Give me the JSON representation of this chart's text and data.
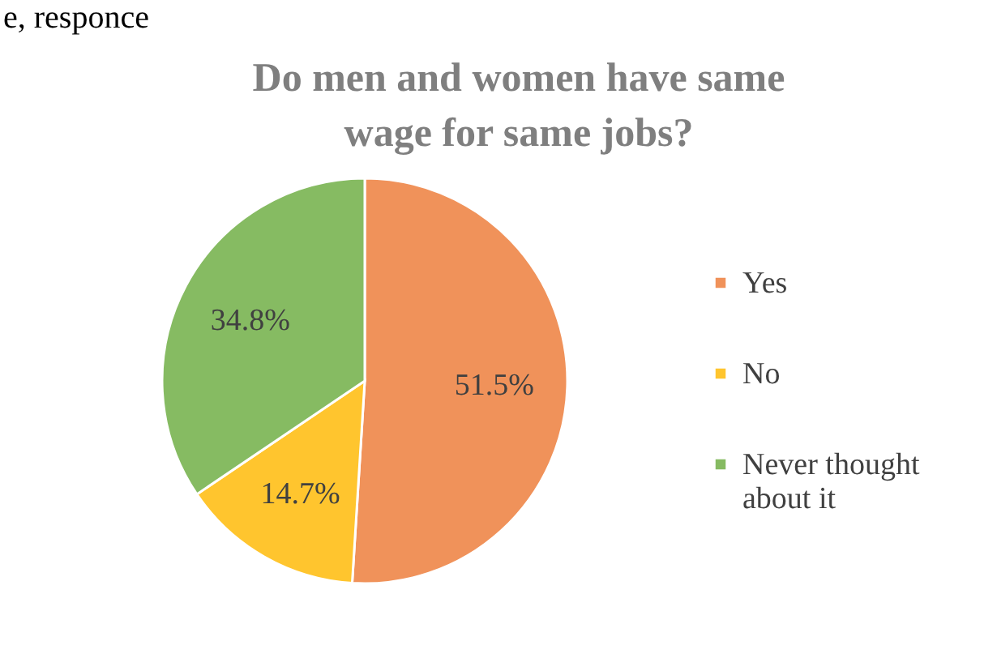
{
  "chart_data": {
    "type": "pie",
    "title": "Do men and women have same wage for same jobs?",
    "categories": [
      "Yes",
      "No",
      "Never thought about it"
    ],
    "values": [
      51.5,
      14.7,
      34.8
    ],
    "colors": [
      "#f0925a",
      "#ffc52e",
      "#86bb62"
    ],
    "value_labels": [
      "51.5%",
      "14.7%",
      "34.8%"
    ],
    "legend": "right",
    "annotations": [
      "e, responce"
    ]
  }
}
